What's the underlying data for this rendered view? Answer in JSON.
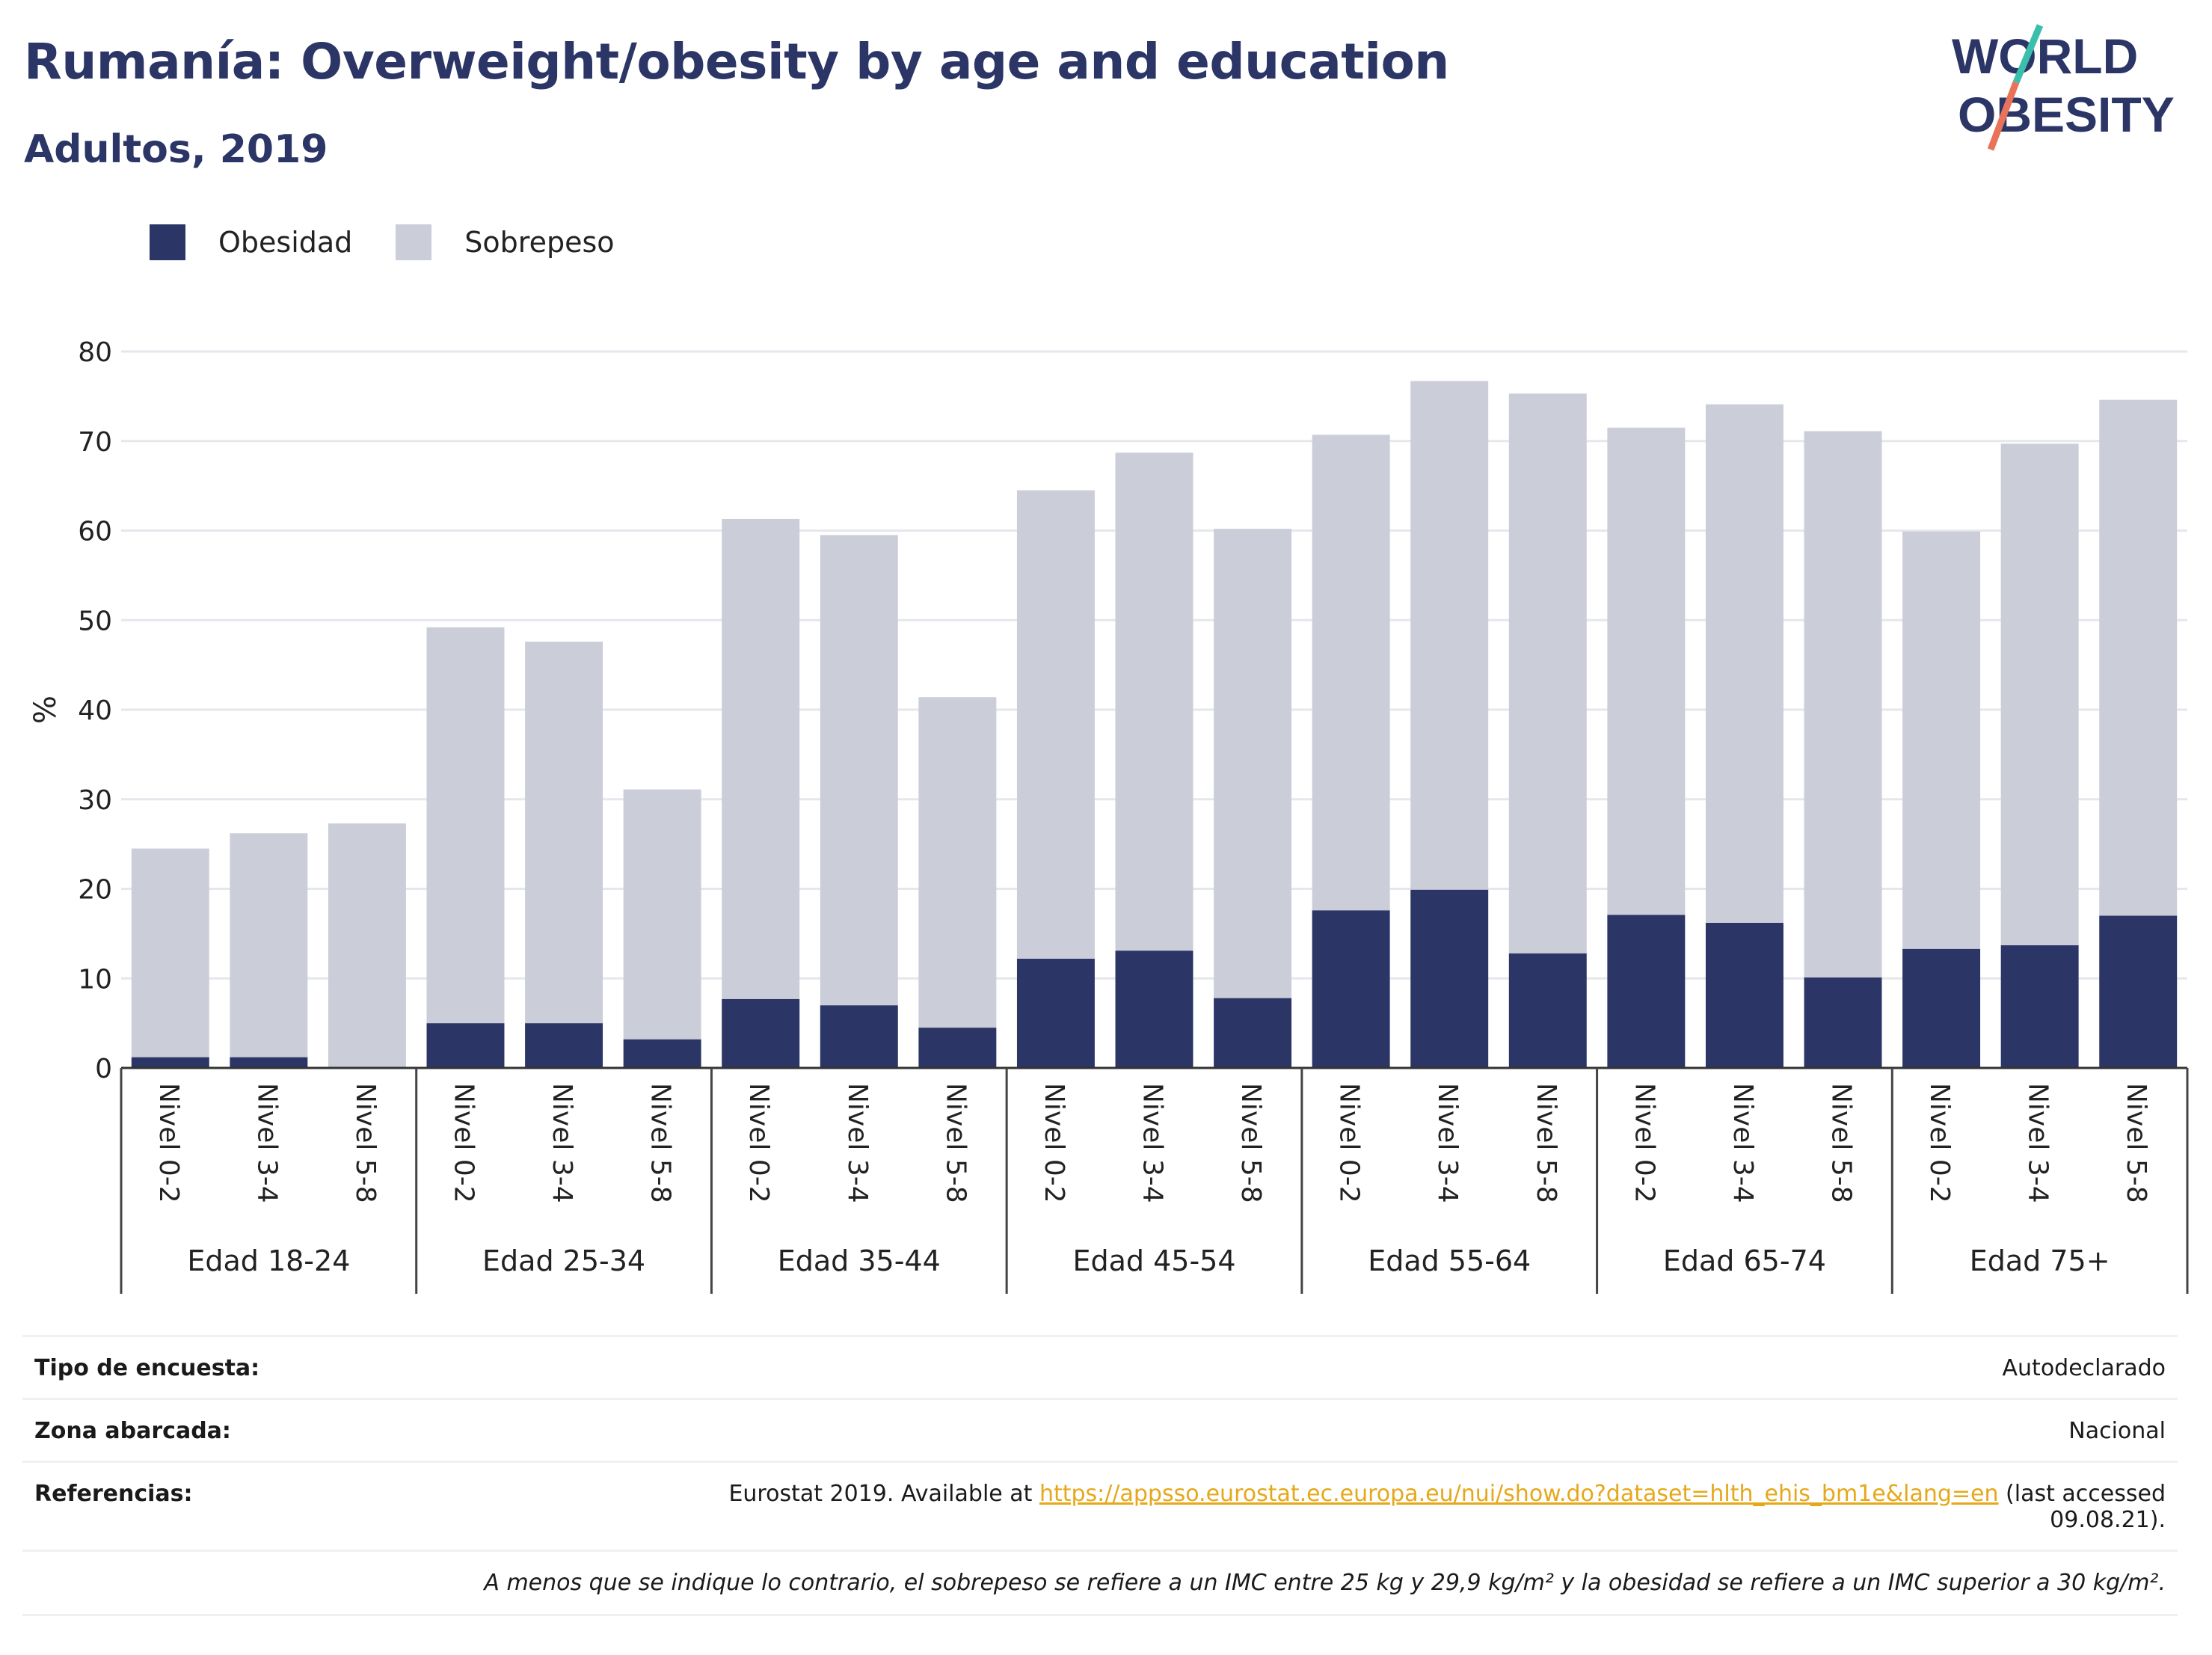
{
  "header": {
    "title": "Rumanía: Overweight/obesity by age and education",
    "subtitle": "Adultos, 2019"
  },
  "logo": {
    "line1": "WORLD",
    "line2": "OBESITY",
    "colors": {
      "text": "#2b3566",
      "slash_teal": "#3bbfad",
      "slash_coral": "#e8735a"
    }
  },
  "legend": {
    "items": [
      {
        "label": "Obesidad",
        "color": "#2b3566"
      },
      {
        "label": "Sobrepeso",
        "color": "#cbcdd8"
      }
    ]
  },
  "chart_data": {
    "type": "bar",
    "stacked": true,
    "ylabel": "%",
    "ylim": [
      0,
      80
    ],
    "yticks": [
      0,
      10,
      20,
      30,
      40,
      50,
      60,
      70,
      80
    ],
    "grid": true,
    "groups": [
      "Edad 18-24",
      "Edad 25-34",
      "Edad 35-44",
      "Edad 45-54",
      "Edad 55-64",
      "Edad 65-74",
      "Edad 75+"
    ],
    "levels": [
      "Nivel 0-2",
      "Nivel 3-4",
      "Nivel 5-8"
    ],
    "series": [
      {
        "name": "Obesidad",
        "color": "#2b3566",
        "values": [
          1.2,
          1.2,
          0.1,
          5.0,
          5.0,
          3.2,
          7.7,
          7.0,
          4.5,
          12.2,
          13.1,
          7.8,
          17.6,
          19.9,
          12.8,
          17.1,
          16.2,
          10.1,
          13.3,
          13.7,
          17.0
        ]
      },
      {
        "name": "Sobrepeso",
        "color": "#cbcdd8",
        "values": [
          23.3,
          25.0,
          27.2,
          44.2,
          42.6,
          27.9,
          53.6,
          52.5,
          36.9,
          52.3,
          55.6,
          52.4,
          53.1,
          56.8,
          62.5,
          54.4,
          57.9,
          61.0,
          46.6,
          56.0,
          57.6
        ]
      }
    ]
  },
  "info": {
    "survey_type_label": "Tipo de encuesta:",
    "survey_type_value": "Autodeclarado",
    "area_label": "Zona abarcada:",
    "area_value": "Nacional",
    "refs_label": "Referencias:",
    "refs_prefix": "Eurostat 2019. Available at ",
    "refs_link": "https://appsso.eurostat.ec.europa.eu/nui/show.do?dataset=hlth_ehis_bm1e&lang=en",
    "refs_suffix": " (last accessed",
    "refs_date": "09.08.21).",
    "note": "A menos que se indique lo contrario, el sobrepeso se refiere a un IMC entre 25 kg y 29,9 kg/m² y la obesidad se refiere a un IMC superior a 30 kg/m²."
  }
}
